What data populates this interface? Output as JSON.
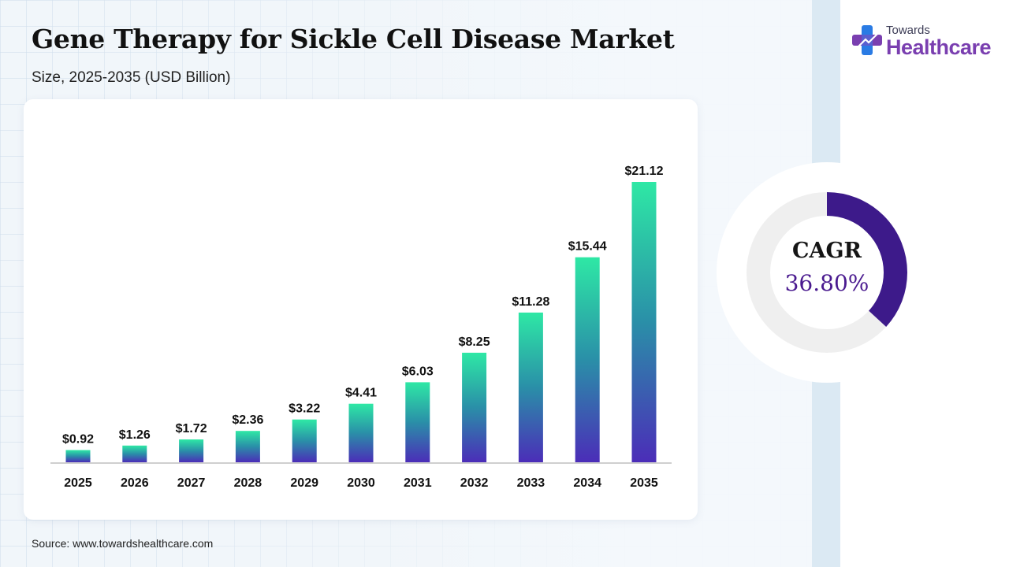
{
  "header": {
    "title": "Gene Therapy for Sickle Cell Disease Market",
    "subtitle": "Size, 2025-2035 (USD Billion)"
  },
  "brand": {
    "small": "Towards",
    "big": "Healthcare",
    "icon": "medical-cross-icon",
    "colors": {
      "purple": "#7a3fb0",
      "blue": "#2a7be4"
    }
  },
  "cagr": {
    "label": "CAGR",
    "value": "36.80%",
    "fraction": 0.368,
    "ring_color": "#3d1a8a",
    "track_color": "#efefef"
  },
  "source": "Source: www.towardshealthcare.com",
  "chart_data": {
    "type": "bar",
    "categories": [
      "2025",
      "2026",
      "2027",
      "2028",
      "2029",
      "2030",
      "2031",
      "2032",
      "2033",
      "2034",
      "2035"
    ],
    "values": [
      0.92,
      1.26,
      1.72,
      2.36,
      3.22,
      4.41,
      6.03,
      8.25,
      11.28,
      15.44,
      21.12
    ],
    "value_labels": [
      "$0.92",
      "$1.26",
      "$1.72",
      "$2.36",
      "$3.22",
      "$4.41",
      "$6.03",
      "$8.25",
      "$11.28",
      "$15.44",
      "$21.12"
    ],
    "title": "Gene Therapy for Sickle Cell Disease Market",
    "xlabel": "",
    "ylabel": "",
    "ylim": [
      0,
      21.12
    ],
    "grid": false,
    "legend": "none",
    "colors": {
      "top": "#2ee8a5",
      "mid": "#2a8fa8",
      "bottom": "#4b2db8"
    }
  }
}
